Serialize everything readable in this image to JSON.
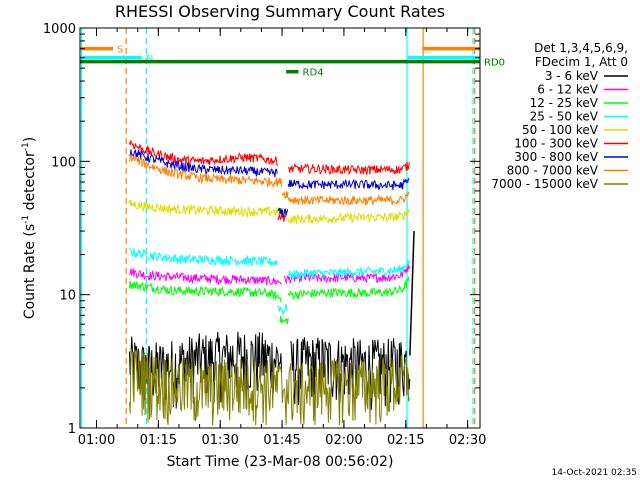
{
  "chart_data": {
    "type": "line",
    "title": "RHESSI Observing Summary Count Rates",
    "xlabel": "Start Time (23-Mar-08 00:56:02)",
    "ylabel_main": "Count Rate (s",
    "ylabel_sup1": "-1",
    "ylabel_mid": " detector",
    "ylabel_sup2": "-1",
    "ylabel_end": ")",
    "yscale": "log",
    "ylim": [
      1,
      1000
    ],
    "xlim_minutes": [
      56.0,
      153.0
    ],
    "x_ticks": [
      {
        "label": "01:00",
        "t": 60
      },
      {
        "label": "01:15",
        "t": 75
      },
      {
        "label": "01:30",
        "t": 90
      },
      {
        "label": "01:45",
        "t": 105
      },
      {
        "label": "02:00",
        "t": 120
      },
      {
        "label": "02:15",
        "t": 135
      },
      {
        "label": "02:30",
        "t": 150
      }
    ],
    "y_ticks": [
      {
        "label": "1",
        "v": 1
      },
      {
        "label": "10",
        "v": 10
      },
      {
        "label": "100",
        "v": 100
      },
      {
        "label": "1000",
        "v": 1000
      }
    ],
    "legend_header": [
      "Det 1,3,4,5,6,9,",
      "FDecim 1, Att 0"
    ],
    "legend_position": "right",
    "series": [
      {
        "name": "3 - 6 keV",
        "color": "#000000",
        "segments": [
          {
            "t0": 68.0,
            "t1": 105.0,
            "points": [
              [
                68,
                3.2
              ],
              [
                72,
                2.8
              ],
              [
                78,
                3.0
              ],
              [
                84,
                3.3
              ],
              [
                90,
                3.4
              ],
              [
                96,
                3.5
              ],
              [
                100,
                3.4
              ],
              [
                105,
                3.3
              ]
            ]
          },
          {
            "t0": 107.0,
            "t1": 136.0,
            "points": [
              [
                107,
                3.0
              ],
              [
                110,
                3.1
              ],
              [
                115,
                3.2
              ],
              [
                120,
                3.1
              ],
              [
                125,
                3.0
              ],
              [
                130,
                3.0
              ],
              [
                135,
                3.2
              ],
              [
                136,
                3.6
              ]
            ]
          }
        ]
      },
      {
        "name": "6 - 12 keV",
        "color": "#ff00ff",
        "segments": [
          {
            "t0": 68.0,
            "t1": 105.0,
            "points": [
              [
                68,
                15
              ],
              [
                72,
                14
              ],
              [
                80,
                13.5
              ],
              [
                88,
                13.2
              ],
              [
                95,
                13
              ],
              [
                100,
                12.8
              ],
              [
                105,
                12.5
              ]
            ]
          },
          {
            "t0": 105.5,
            "t1": 136.0,
            "points": [
              [
                105.5,
                13
              ],
              [
                110,
                13.5
              ],
              [
                115,
                13.2
              ],
              [
                120,
                13.5
              ],
              [
                125,
                13.3
              ],
              [
                130,
                13.5
              ],
              [
                134,
                14
              ],
              [
                136,
                17
              ]
            ]
          }
        ]
      },
      {
        "name": "12 - 25 keV",
        "color": "#00ff00",
        "segments": [
          {
            "t0": 68.0,
            "t1": 105.0,
            "points": [
              [
                68,
                12
              ],
              [
                72,
                11.5
              ],
              [
                78,
                10.8
              ],
              [
                85,
                10.6
              ],
              [
                92,
                10.6
              ],
              [
                98,
                10.4
              ],
              [
                102,
                10.2
              ],
              [
                104.5,
                9.5
              ]
            ]
          },
          {
            "t0": 104.5,
            "t1": 106.5,
            "points": [
              [
                104.5,
                6.5
              ],
              [
                105.5,
                6.2
              ],
              [
                106.4,
                6.5
              ]
            ]
          },
          {
            "t0": 106.5,
            "t1": 136.0,
            "points": [
              [
                106.5,
                10
              ],
              [
                112,
                10.2
              ],
              [
                118,
                10.4
              ],
              [
                124,
                10.3
              ],
              [
                130,
                10.4
              ],
              [
                134,
                10.8
              ],
              [
                136,
                13
              ]
            ]
          }
        ]
      },
      {
        "name": "25 - 50 keV",
        "color": "#00ffff",
        "segments": [
          {
            "t0": 68.0,
            "t1": 104.0,
            "points": [
              [
                68,
                21
              ],
              [
                74,
                19.5
              ],
              [
                80,
                18.5
              ],
              [
                88,
                18.3
              ],
              [
                95,
                18
              ],
              [
                100,
                17.8
              ],
              [
                104,
                17.5
              ]
            ]
          },
          {
            "t0": 104.0,
            "t1": 106.5,
            "points": [
              [
                104,
                8.2
              ],
              [
                105.3,
                7.5
              ],
              [
                106.4,
                8.2
              ]
            ]
          },
          {
            "t0": 106.5,
            "t1": 136.0,
            "points": [
              [
                106.5,
                14
              ],
              [
                112,
                14.5
              ],
              [
                118,
                14.5
              ],
              [
                124,
                14.8
              ],
              [
                130,
                15
              ],
              [
                134,
                15.5
              ],
              [
                136,
                18
              ]
            ]
          }
        ]
      },
      {
        "name": "50 - 100 keV",
        "color": "#dddd00",
        "segments": [
          {
            "t0": 68.0,
            "t1": 106.5,
            "points": [
              [
                68,
                48
              ],
              [
                72,
                46
              ],
              [
                78,
                44
              ],
              [
                85,
                43
              ],
              [
                92,
                42.5
              ],
              [
                98,
                42
              ],
              [
                104,
                42
              ],
              [
                106,
                41
              ]
            ]
          },
          {
            "t0": 106.5,
            "t1": 136.0,
            "points": [
              [
                106.5,
                37
              ],
              [
                112,
                37
              ],
              [
                118,
                37.5
              ],
              [
                124,
                38
              ],
              [
                130,
                38
              ],
              [
                134,
                38.5
              ],
              [
                136,
                43
              ]
            ]
          }
        ]
      },
      {
        "name": "100 - 300 keV",
        "color": "#ff0000",
        "segments": [
          {
            "t0": 68.0,
            "t1": 104.0,
            "points": [
              [
                68,
                140
              ],
              [
                70,
                128
              ],
              [
                74,
                115
              ],
              [
                80,
                103
              ],
              [
                85,
                100
              ],
              [
                90,
                104
              ],
              [
                96,
                107
              ],
              [
                100,
                105
              ],
              [
                104,
                100
              ]
            ]
          },
          {
            "t0": 104.0,
            "t1": 106.5,
            "points": [
              [
                104,
                39
              ],
              [
                105.3,
                38
              ],
              [
                106.4,
                40
              ]
            ]
          },
          {
            "t0": 106.5,
            "t1": 136.0,
            "points": [
              [
                106.5,
                88
              ],
              [
                112,
                88
              ],
              [
                118,
                87
              ],
              [
                124,
                86
              ],
              [
                130,
                87
              ],
              [
                134,
                87
              ],
              [
                136,
                95
              ]
            ]
          }
        ]
      },
      {
        "name": "300 - 800 keV",
        "color": "#0000dd",
        "segments": [
          {
            "t0": 68.0,
            "t1": 104.0,
            "points": [
              [
                68,
                120
              ],
              [
                72,
                108
              ],
              [
                78,
                95
              ],
              [
                84,
                88
              ],
              [
                90,
                86
              ],
              [
                96,
                85
              ],
              [
                100,
                83
              ],
              [
                104,
                82
              ]
            ]
          },
          {
            "t0": 104.0,
            "t1": 106.5,
            "points": [
              [
                104,
                42
              ],
              [
                105.3,
                41
              ],
              [
                106.4,
                43
              ]
            ]
          },
          {
            "t0": 106.5,
            "t1": 136.0,
            "points": [
              [
                106.5,
                68
              ],
              [
                112,
                67
              ],
              [
                118,
                67
              ],
              [
                124,
                67
              ],
              [
                130,
                66
              ],
              [
                134,
                66
              ],
              [
                136,
                72
              ]
            ]
          }
        ]
      },
      {
        "name": "800 - 7000 keV",
        "color": "#ff8000",
        "segments": [
          {
            "t0": 68.0,
            "t1": 105.0,
            "points": [
              [
                68,
                108
              ],
              [
                72,
                95
              ],
              [
                78,
                82
              ],
              [
                84,
                76
              ],
              [
                90,
                73
              ],
              [
                96,
                72
              ],
              [
                100,
                71
              ],
              [
                104,
                70
              ]
            ]
          },
          {
            "t0": 105.0,
            "t1": 106.5,
            "points": [
              [
                105,
                58
              ],
              [
                105.8,
                57
              ],
              [
                106.4,
                58
              ]
            ]
          },
          {
            "t0": 106.5,
            "t1": 136.0,
            "points": [
              [
                106.5,
                52
              ],
              [
                112,
                51
              ],
              [
                118,
                51
              ],
              [
                124,
                51
              ],
              [
                130,
                51
              ],
              [
                134,
                51
              ],
              [
                136,
                58
              ]
            ]
          }
        ]
      },
      {
        "name": "7000 - 15000 keV",
        "color": "#808000",
        "segments": [
          {
            "t0": 68.0,
            "t1": 136.0,
            "points": [
              [
                68,
                2.7
              ],
              [
                75,
                2.3
              ],
              [
                80,
                2.2
              ],
              [
                86,
                2.0
              ],
              [
                92,
                2.2
              ],
              [
                98,
                2.2
              ],
              [
                104,
                2.1
              ],
              [
                110,
                2.0
              ],
              [
                116,
                2.2
              ],
              [
                122,
                2.1
              ],
              [
                128,
                2.2
              ],
              [
                134,
                2.3
              ],
              [
                136,
                2.6
              ]
            ]
          }
        ]
      }
    ],
    "spike_series": [
      {
        "name": "3 - 6 keV",
        "color": "#000000",
        "t0": 136.0,
        "t1": 137.0,
        "v_from": 3.5,
        "v_to": 30
      }
    ],
    "flag_bars": [
      {
        "label": "S",
        "color": "#ff8000",
        "level": 700,
        "t0": 56.0,
        "t1": 64.0
      },
      {
        "label": "",
        "color": "#ff8000",
        "level": 700,
        "t0": 139.0,
        "t1": 153.0
      },
      {
        "label": "N",
        "color": "#00ffff",
        "level": 600,
        "t0": 56.0,
        "t1": 71.0
      },
      {
        "label": "",
        "color": "#00ffff",
        "level": 600,
        "t0": 135.5,
        "t1": 153.0
      },
      {
        "label": "RD0",
        "color": "#007f00",
        "level": 560,
        "t0": 56.0,
        "t1": 153.0
      },
      {
        "label": "RD4",
        "color": "#007f00",
        "level": 470,
        "t0": 106.0,
        "t1": 109.0
      }
    ],
    "vertical_markers": [
      {
        "color": "#00ffff",
        "t": 56.4,
        "style": "solid"
      },
      {
        "color": "#ff8000",
        "t": 67.2,
        "style": "dashed"
      },
      {
        "color": "#00ffff",
        "t": 72.1,
        "style": "dashed"
      },
      {
        "color": "#00ffff",
        "t": 135.3,
        "style": "solid"
      },
      {
        "color": "#ff8000",
        "t": 139.2,
        "style": "solid"
      },
      {
        "color": "#00ffff",
        "t": 151.3,
        "style": "dashed"
      },
      {
        "color": "#ff8000",
        "t": 151.7,
        "style": "dashed"
      }
    ],
    "datestamp": "14-Oct-2021 02:35"
  }
}
